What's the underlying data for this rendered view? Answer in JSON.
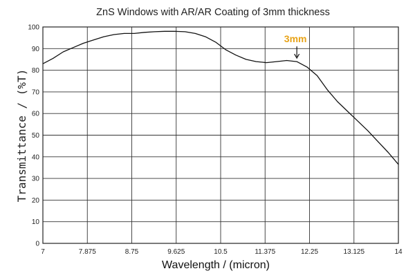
{
  "chart_data": {
    "type": "line",
    "title": "ZnS Windows with AR/AR Coating of 3mm thickness",
    "xlabel": "Wavelength / (micron)",
    "ylabel": "Transmittance / (%T)",
    "xlim": [
      7,
      14
    ],
    "ylim": [
      0,
      100
    ],
    "x_ticks": [
      "7",
      "7.875",
      "8.75",
      "9.625",
      "10.5",
      "11.375",
      "12.25",
      "13.125",
      "14"
    ],
    "y_ticks": [
      "0",
      "10",
      "20",
      "30",
      "40",
      "50",
      "60",
      "70",
      "80",
      "90",
      "100"
    ],
    "grid": true,
    "annotation": {
      "label": "3mm",
      "x": 12.0,
      "y": 84,
      "color": "#e8a317"
    },
    "series": [
      {
        "x": [
          7.0,
          7.2,
          7.4,
          7.6,
          7.8,
          8.0,
          8.2,
          8.4,
          8.6,
          8.8,
          9.0,
          9.2,
          9.4,
          9.6,
          9.8,
          10.0,
          10.2,
          10.4,
          10.6,
          10.8,
          11.0,
          11.2,
          11.4,
          11.6,
          11.8,
          12.0,
          12.2,
          12.4,
          12.6,
          12.8,
          13.0,
          13.2,
          13.4,
          13.6,
          13.8,
          14.0
        ],
        "y": [
          83,
          85.5,
          88.5,
          90.5,
          92.5,
          94,
          95.5,
          96.5,
          97,
          97,
          97.5,
          97.8,
          98,
          98,
          97.8,
          97,
          95.5,
          93,
          89.5,
          87,
          85,
          84,
          83.5,
          84,
          84.5,
          84,
          81.5,
          77.5,
          71,
          65.5,
          61,
          56.5,
          52,
          47,
          42,
          36.5
        ],
        "color": "#111111"
      }
    ]
  }
}
